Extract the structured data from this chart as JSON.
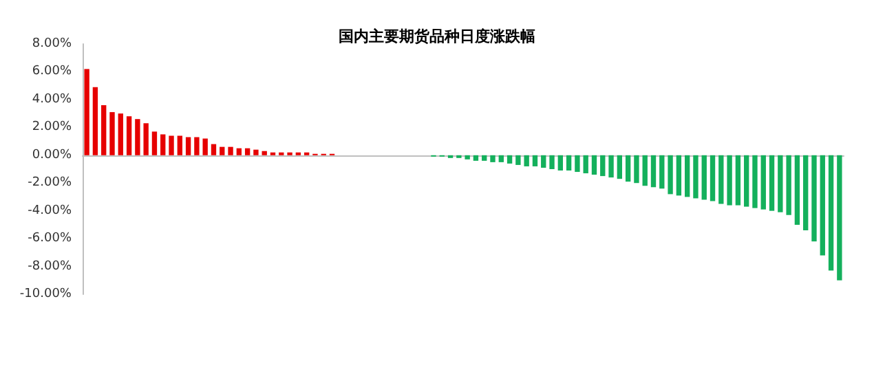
{
  "chart_data": {
    "type": "bar",
    "title": "国内主要期货品种日度涨跌幅",
    "categories": [
      null,
      null,
      null,
      null,
      null,
      null,
      null,
      null,
      null,
      null,
      null,
      null,
      null,
      null,
      null,
      null,
      null,
      null,
      null,
      null,
      null,
      null,
      null,
      null,
      null,
      null,
      null,
      null,
      null,
      null,
      null,
      null,
      null,
      null,
      null,
      null,
      null,
      null,
      null,
      null,
      null,
      null,
      null,
      null,
      null,
      null,
      null,
      null,
      null,
      null,
      null,
      null,
      null,
      null,
      null,
      null,
      null,
      null,
      null,
      null,
      null,
      null,
      null,
      null,
      null,
      null,
      null,
      null,
      null,
      null,
      null,
      null,
      null,
      null,
      null,
      null,
      null,
      null,
      null,
      null,
      null,
      null,
      null,
      null,
      null,
      null,
      null,
      null,
      null,
      null
    ],
    "values": [
      6.2,
      4.9,
      3.6,
      3.1,
      3.0,
      2.8,
      2.6,
      2.3,
      1.7,
      1.5,
      1.4,
      1.4,
      1.3,
      1.3,
      1.2,
      0.8,
      0.6,
      0.6,
      0.5,
      0.5,
      0.4,
      0.3,
      0.2,
      0.2,
      0.2,
      0.2,
      0.2,
      0.1,
      0.1,
      0.1,
      0,
      0,
      0,
      0,
      0,
      0,
      0,
      0,
      0,
      0,
      0,
      -0.1,
      -0.1,
      -0.2,
      -0.2,
      -0.3,
      -0.4,
      -0.4,
      -0.5,
      -0.5,
      -0.6,
      -0.7,
      -0.8,
      -0.8,
      -0.9,
      -1.0,
      -1.1,
      -1.1,
      -1.2,
      -1.3,
      -1.4,
      -1.5,
      -1.6,
      -1.7,
      -1.9,
      -2.0,
      -2.2,
      -2.3,
      -2.4,
      -2.8,
      -2.9,
      -3.0,
      -3.1,
      -3.2,
      -3.3,
      -3.5,
      -3.6,
      -3.6,
      -3.7,
      -3.8,
      -3.9,
      -4.0,
      -4.1,
      -4.3,
      -5.0,
      -5.4,
      -6.2,
      -7.2,
      -8.3,
      -9.0
    ],
    "colors": [
      "#e60000",
      "#e60000",
      "#e60000",
      "#e60000",
      "#e60000",
      "#e60000",
      "#e60000",
      "#e60000",
      "#e60000",
      "#e60000",
      "#e60000",
      "#e60000",
      "#e60000",
      "#e60000",
      "#e60000",
      "#e60000",
      "#e60000",
      "#e60000",
      "#e60000",
      "#e60000",
      "#e60000",
      "#e60000",
      "#e60000",
      "#e60000",
      "#e60000",
      "#e60000",
      "#e60000",
      "#e60000",
      "#e60000",
      "#e60000",
      "#e60000",
      "#e60000",
      "#e60000",
      "#e60000",
      "#e60000",
      "#e60000",
      "#e60000",
      "#e60000",
      "#e60000",
      "#14b05c",
      "#14b05c",
      "#14b05c",
      "#14b05c",
      "#14b05c",
      "#14b05c",
      "#14b05c",
      "#14b05c",
      "#14b05c",
      "#14b05c",
      "#14b05c",
      "#14b05c",
      "#14b05c",
      "#14b05c",
      "#14b05c",
      "#14b05c",
      "#14b05c",
      "#14b05c",
      "#14b05c",
      "#14b05c",
      "#14b05c",
      "#14b05c",
      "#14b05c",
      "#14b05c",
      "#14b05c",
      "#14b05c",
      "#14b05c",
      "#14b05c",
      "#14b05c",
      "#14b05c",
      "#14b05c",
      "#14b05c",
      "#14b05c",
      "#14b05c",
      "#14b05c",
      "#14b05c",
      "#14b05c",
      "#14b05c",
      "#14b05c",
      "#14b05c",
      "#14b05c",
      "#14b05c",
      "#14b05c",
      "#14b05c",
      "#14b05c",
      "#14b05c",
      "#14b05c",
      "#14b05c",
      "#14b05c",
      "#14b05c",
      "#14b05c"
    ],
    "ylim": [
      -10,
      8
    ],
    "yticks": [
      {
        "value": -10,
        "label": "-10.00%"
      },
      {
        "value": -8,
        "label": "-8.00%"
      },
      {
        "value": -6,
        "label": "-6.00%"
      },
      {
        "value": -4,
        "label": "-4.00%"
      },
      {
        "value": -2,
        "label": "-2.00%"
      },
      {
        "value": 0,
        "label": "0.00%"
      },
      {
        "value": 2,
        "label": "2.00%"
      },
      {
        "value": 4,
        "label": "4.00%"
      },
      {
        "value": 6,
        "label": "6.00%"
      },
      {
        "value": 8,
        "label": "8.00%"
      }
    ],
    "relative": false
  }
}
